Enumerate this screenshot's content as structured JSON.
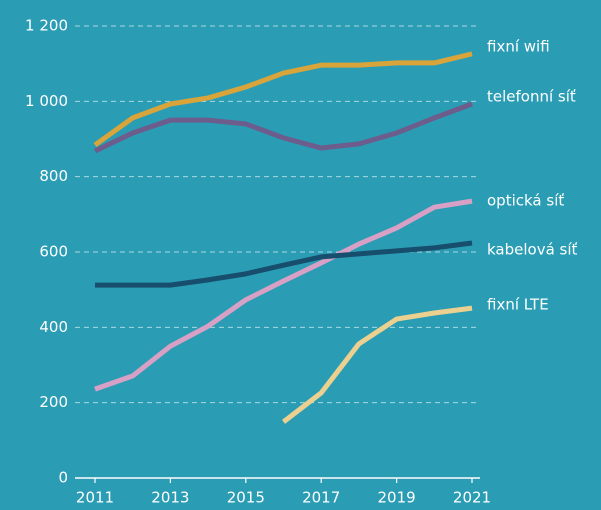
{
  "chart_data": {
    "type": "line",
    "x": [
      2011,
      2012,
      2013,
      2014,
      2015,
      2016,
      2017,
      2018,
      2019,
      2020,
      2021
    ],
    "series": [
      {
        "name": "fixní wifi",
        "color": "#d9a43a",
        "values": [
          884,
          956,
          993,
          1009,
          1038,
          1075,
          1096,
          1096,
          1102,
          1102,
          1126
        ]
      },
      {
        "name": "telefonní síť",
        "color": "#6c5d8c",
        "values": [
          868,
          916,
          950,
          950,
          940,
          903,
          876,
          887,
          916,
          956,
          993
        ]
      },
      {
        "name": "optická síť",
        "color": "#d9a0c6",
        "values": [
          236,
          271,
          350,
          403,
          473,
          523,
          571,
          621,
          664,
          719,
          735
        ]
      },
      {
        "name": "kabelová síť",
        "color": "#174e6d",
        "values": [
          512,
          512,
          512,
          526,
          542,
          565,
          587,
          595,
          603,
          611,
          624
        ]
      },
      {
        "name": "fixní LTE",
        "color": "#ecd08f",
        "values": [
          null,
          null,
          null,
          null,
          null,
          149,
          226,
          356,
          422,
          438,
          451
        ]
      }
    ],
    "xlim": [
      2011,
      2021
    ],
    "xticks": [
      2011,
      2013,
      2015,
      2017,
      2019,
      2021
    ],
    "ylim": [
      0,
      1200
    ],
    "yticks": [
      0,
      200,
      400,
      600,
      800,
      {
        "value": 1000,
        "label": "1 000"
      },
      {
        "value": 1200,
        "label": "1 200"
      }
    ],
    "grid": true
  }
}
